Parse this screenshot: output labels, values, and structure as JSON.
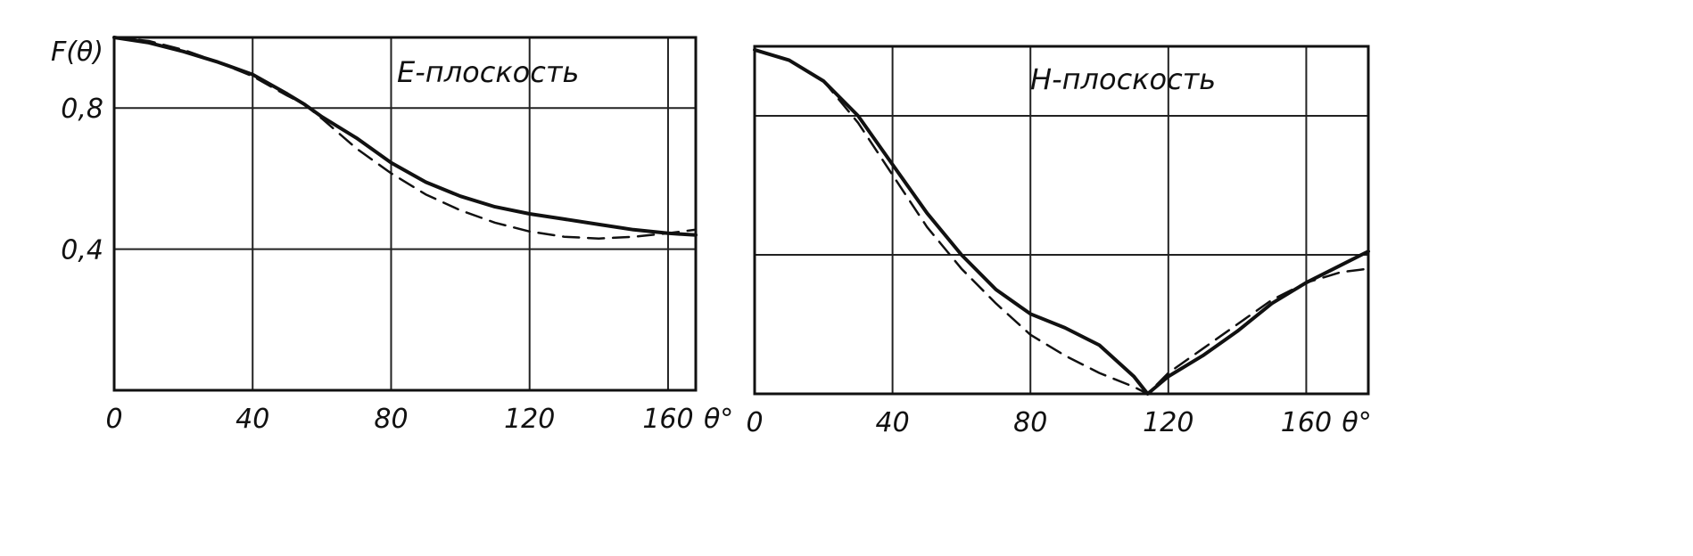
{
  "chart_data": [
    {
      "type": "line",
      "title": "E-плоскость",
      "ylabel": "F(θ)",
      "xlabel": "θ°",
      "xlim": [
        0,
        168
      ],
      "ylim": [
        0,
        1
      ],
      "x_ticks": [
        {
          "v": 0,
          "label": "0"
        },
        {
          "v": 40,
          "label": "40"
        },
        {
          "v": 80,
          "label": "80"
        },
        {
          "v": 120,
          "label": "120"
        },
        {
          "v": 160,
          "label": "160"
        }
      ],
      "y_ticks": [
        {
          "v": 0.4,
          "label": "0,4"
        },
        {
          "v": 0.8,
          "label": "0,8"
        }
      ],
      "grid": true,
      "series": [
        {
          "style": "solid",
          "x": [
            0,
            10,
            20,
            30,
            40,
            50,
            55,
            60,
            70,
            80,
            90,
            100,
            110,
            120,
            130,
            140,
            150,
            160,
            168
          ],
          "y": [
            1.0,
            0.985,
            0.96,
            0.93,
            0.895,
            0.84,
            0.81,
            0.775,
            0.715,
            0.645,
            0.59,
            0.55,
            0.52,
            0.5,
            0.485,
            0.47,
            0.455,
            0.445,
            0.44
          ]
        },
        {
          "style": "dashed",
          "x": [
            0,
            10,
            20,
            30,
            40,
            50,
            55,
            60,
            70,
            80,
            90,
            100,
            110,
            120,
            130,
            140,
            150,
            160,
            168
          ],
          "y": [
            1.0,
            0.99,
            0.965,
            0.93,
            0.89,
            0.835,
            0.81,
            0.77,
            0.685,
            0.615,
            0.555,
            0.51,
            0.475,
            0.45,
            0.435,
            0.43,
            0.435,
            0.445,
            0.455
          ]
        }
      ]
    },
    {
      "type": "line",
      "title": "H-плоскость",
      "xlabel": "θ°",
      "xlim": [
        0,
        178
      ],
      "ylim": [
        0,
        1
      ],
      "x_ticks": [
        {
          "v": 0,
          "label": "0"
        },
        {
          "v": 40,
          "label": "40"
        },
        {
          "v": 80,
          "label": "80"
        },
        {
          "v": 120,
          "label": "120"
        },
        {
          "v": 160,
          "label": "160"
        }
      ],
      "y_ticks": [
        {
          "v": 0.4,
          "label": ""
        },
        {
          "v": 0.8,
          "label": ""
        }
      ],
      "grid": true,
      "series": [
        {
          "style": "solid",
          "x": [
            0,
            10,
            20,
            30,
            40,
            50,
            60,
            70,
            80,
            90,
            100,
            110,
            114,
            120,
            130,
            140,
            150,
            160,
            170,
            178
          ],
          "y": [
            0.99,
            0.96,
            0.9,
            0.8,
            0.66,
            0.52,
            0.4,
            0.3,
            0.23,
            0.19,
            0.14,
            0.05,
            0.0,
            0.05,
            0.11,
            0.18,
            0.26,
            0.32,
            0.37,
            0.41
          ]
        },
        {
          "style": "dashed",
          "x": [
            0,
            10,
            20,
            30,
            40,
            50,
            60,
            70,
            80,
            90,
            100,
            110,
            114,
            120,
            130,
            140,
            150,
            160,
            170,
            178
          ],
          "y": [
            0.99,
            0.96,
            0.9,
            0.78,
            0.63,
            0.48,
            0.36,
            0.26,
            0.17,
            0.11,
            0.06,
            0.02,
            0.0,
            0.06,
            0.13,
            0.2,
            0.27,
            0.32,
            0.35,
            0.36
          ]
        }
      ]
    }
  ]
}
